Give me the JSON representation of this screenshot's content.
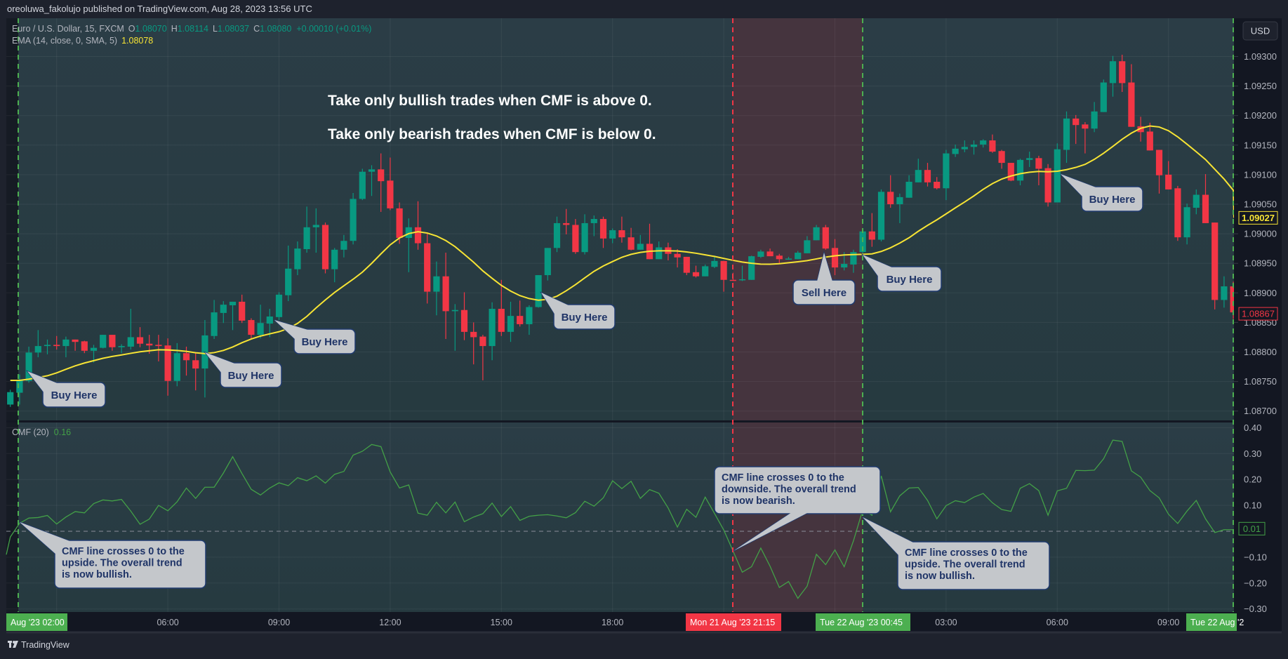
{
  "publisher_line": "oreoluwa_fakolujo published on TradingView.com, Aug 28, 2023 13:56 UTC",
  "footer_brand": "TradingView",
  "colors": {
    "bull": "#089981",
    "bear": "#f23645",
    "ema": "#f7e434",
    "cmf": "#43a047",
    "marker_green": "#4caf50",
    "marker_red": "#f23645",
    "callout_fill": "#c4c7cb",
    "callout_text": "#1f3467",
    "bear_zone": "#45343e"
  },
  "legend": {
    "symbol": "Euro / U.S. Dollar, 15, FXCM",
    "o_label": "O",
    "o_value": "1.08070",
    "h_label": "H",
    "h_value": "1.08114",
    "l_label": "L",
    "l_value": "1.08037",
    "c_label": "C",
    "c_value": "1.08080",
    "change": "+0.00010 (+0.01%)",
    "ema_label": "EMA (14, close, 0, SMA, 5)",
    "ema_value": "1.08078",
    "cmf_label": "CMF (20)",
    "cmf_value": "0.16"
  },
  "currency_button": "USD",
  "headline": {
    "line1": "Take only bullish trades when CMF is above 0.",
    "line2": "Take only bearish trades when CMF is below 0."
  },
  "callouts": {
    "buy1": "Buy Here",
    "buy2": "Buy Here",
    "buy3": "Buy Here",
    "buy4": "Buy Here",
    "sell1": "Sell Here",
    "buy5": "Buy Here",
    "buy6": "Buy Here",
    "cmf_up1": [
      "CMF line crosses 0 to the",
      "upside. The overall trend",
      "is now bullish."
    ],
    "cmf_down": [
      "CMF line crosses 0 to the",
      "downside. The overall trend",
      "is now bearish."
    ],
    "cmf_up2": [
      "CMF line crosses 0 to the",
      "upside. The overall trend",
      "is now bullish."
    ]
  },
  "price_labels": {
    "ema_last": "1.09027",
    "close_last": "1.08867",
    "cmf_last": "0.01"
  },
  "chart_data": [
    {
      "type": "candlestick",
      "interval": "15",
      "y_ticks": [
        "1.09300",
        "1.09250",
        "1.09200",
        "1.09150",
        "1.09100",
        "1.09050",
        "1.09000",
        "1.08950",
        "1.08900",
        "1.08850",
        "1.08800",
        "1.08750",
        "1.08700"
      ],
      "ylim": [
        1.08684,
        1.09365
      ],
      "x_ticks": [
        "06:00",
        "09:00",
        "12:00",
        "15:00",
        "18:00",
        "03:00",
        "06:00",
        "09:00"
      ],
      "x_markers": [
        {
          "label": "Aug '23  02:00",
          "color": "green"
        },
        {
          "label": "Mon 21 Aug '23  21:15",
          "color": "red"
        },
        {
          "label": "Tue 22 Aug '23  00:45",
          "color": "green"
        },
        {
          "label": "Tue 22 Aug '2",
          "color": "green"
        }
      ],
      "grid": true,
      "ohlc": [
        [
          1.08711,
          1.08736,
          1.08707,
          1.08732
        ],
        [
          1.08731,
          1.08762,
          1.08711,
          1.08752
        ],
        [
          1.08751,
          1.08809,
          1.08748,
          1.08799
        ],
        [
          1.08799,
          1.08837,
          1.08791,
          1.0881
        ],
        [
          1.0881,
          1.08821,
          1.08796,
          1.08812
        ],
        [
          1.08812,
          1.08827,
          1.08804,
          1.0881
        ],
        [
          1.0881,
          1.08826,
          1.08791,
          1.08821
        ],
        [
          1.08821,
          1.08821,
          1.08802,
          1.08817
        ],
        [
          1.08818,
          1.08819,
          1.08798,
          1.08802
        ],
        [
          1.08802,
          1.08812,
          1.08782,
          1.08807
        ],
        [
          1.08807,
          1.08829,
          1.08806,
          1.08829
        ],
        [
          1.08829,
          1.08829,
          1.08802,
          1.08808
        ],
        [
          1.08808,
          1.08813,
          1.08798,
          1.0881
        ],
        [
          1.08809,
          1.08873,
          1.08804,
          1.08825
        ],
        [
          1.08825,
          1.08842,
          1.08808,
          1.08814
        ],
        [
          1.08814,
          1.08829,
          1.08797,
          1.08811
        ],
        [
          1.08812,
          1.08829,
          1.08784,
          1.0881
        ],
        [
          1.08811,
          1.08823,
          1.08726,
          1.08751
        ],
        [
          1.08751,
          1.08815,
          1.08742,
          1.08798
        ],
        [
          1.08798,
          1.08809,
          1.0876,
          1.08786
        ],
        [
          1.08786,
          1.08798,
          1.08735,
          1.08772
        ],
        [
          1.08772,
          1.08854,
          1.08723,
          1.08828
        ],
        [
          1.08827,
          1.08888,
          1.08822,
          1.08867
        ],
        [
          1.08866,
          1.08886,
          1.08849,
          1.0888
        ],
        [
          1.08879,
          1.08885,
          1.08837,
          1.08885
        ],
        [
          1.08885,
          1.08897,
          1.08849,
          1.08853
        ],
        [
          1.08854,
          1.08857,
          1.08821,
          1.08829
        ],
        [
          1.08829,
          1.0888,
          1.08823,
          1.08849
        ],
        [
          1.08848,
          1.08873,
          1.08825,
          1.0886
        ],
        [
          1.08859,
          1.08901,
          1.08854,
          1.08897
        ],
        [
          1.08896,
          1.0898,
          1.08886,
          1.08941
        ],
        [
          1.0894,
          1.08987,
          1.0893,
          1.08975
        ],
        [
          1.08974,
          1.09046,
          1.08968,
          1.09011
        ],
        [
          1.09011,
          1.09043,
          1.08968,
          1.09015
        ],
        [
          1.09015,
          1.09019,
          1.08933,
          1.0894
        ],
        [
          1.0894,
          1.08976,
          1.08918,
          1.08973
        ],
        [
          1.08973,
          1.08998,
          1.0896,
          1.08988
        ],
        [
          1.08988,
          1.09069,
          1.08982,
          1.09059
        ],
        [
          1.09059,
          1.0911,
          1.09057,
          1.09105
        ],
        [
          1.09105,
          1.09116,
          1.09064,
          1.09109
        ],
        [
          1.09109,
          1.09136,
          1.09037,
          1.09089
        ],
        [
          1.0909,
          1.09129,
          1.0904,
          1.09043
        ],
        [
          1.09043,
          1.09053,
          1.08983,
          1.08993
        ],
        [
          1.08993,
          1.09026,
          1.08935,
          1.09011
        ],
        [
          1.09011,
          1.09055,
          1.08973,
          1.08984
        ],
        [
          1.08984,
          1.09,
          1.08882,
          1.08902
        ],
        [
          1.08902,
          1.08953,
          1.08862,
          1.08928
        ],
        [
          1.08928,
          1.08968,
          1.08822,
          1.08869
        ],
        [
          1.08869,
          1.08881,
          1.08802,
          1.08871
        ],
        [
          1.08871,
          1.08901,
          1.0882,
          1.08834
        ],
        [
          1.08834,
          1.0885,
          1.08779,
          1.08825
        ],
        [
          1.08826,
          1.08829,
          1.08752,
          1.0881
        ],
        [
          1.0881,
          1.08884,
          1.08786,
          1.08873
        ],
        [
          1.08873,
          1.08922,
          1.08827,
          1.08834
        ],
        [
          1.08834,
          1.08885,
          1.08817,
          1.08861
        ],
        [
          1.08861,
          1.08887,
          1.08843,
          1.08847
        ],
        [
          1.08847,
          1.08879,
          1.08829,
          1.08876
        ],
        [
          1.08876,
          1.0893,
          1.08875,
          1.0893
        ],
        [
          1.0893,
          1.08976,
          1.08921,
          1.08976
        ],
        [
          1.08976,
          1.09029,
          1.08969,
          1.09018
        ],
        [
          1.09018,
          1.09042,
          1.08999,
          1.09015
        ],
        [
          1.09015,
          1.09025,
          1.08966,
          1.08969
        ],
        [
          1.08969,
          1.09033,
          1.08965,
          1.09018
        ],
        [
          1.09018,
          1.09031,
          1.08996,
          1.09025
        ],
        [
          1.09025,
          1.09029,
          1.08976,
          1.08992
        ],
        [
          1.08992,
          1.09009,
          1.08984,
          1.09006
        ],
        [
          1.09006,
          1.09029,
          1.08985,
          1.08994
        ],
        [
          1.08994,
          1.0901,
          1.08972,
          1.08973
        ],
        [
          1.08973,
          1.08998,
          1.08973,
          1.08983
        ],
        [
          1.08983,
          1.09017,
          1.08957,
          1.08957
        ],
        [
          1.08957,
          1.08987,
          1.08957,
          1.08977
        ],
        [
          1.08977,
          1.08985,
          1.08955,
          1.08966
        ],
        [
          1.08966,
          1.08974,
          1.08943,
          1.0896
        ],
        [
          1.08961,
          1.08961,
          1.0893,
          1.08934
        ],
        [
          1.08935,
          1.08946,
          1.08926,
          1.08928
        ],
        [
          1.08928,
          1.08948,
          1.08928,
          1.08945
        ],
        [
          1.08944,
          1.08961,
          1.08942,
          1.08954
        ],
        [
          1.08954,
          1.08954,
          1.08902,
          1.08922
        ],
        [
          1.08922,
          1.08934,
          1.08922,
          1.08921
        ],
        [
          1.08922,
          1.08946,
          1.0892,
          1.08923
        ],
        [
          1.08922,
          1.08963,
          1.08922,
          1.08962
        ],
        [
          1.08961,
          1.08973,
          1.08959,
          1.0897
        ],
        [
          1.0897,
          1.08975,
          1.08962,
          1.08962
        ],
        [
          1.08963,
          1.08966,
          1.08949,
          1.08957
        ],
        [
          1.08957,
          1.08961,
          1.08956,
          1.08958
        ],
        [
          1.08957,
          1.08971,
          1.08957,
          1.08968
        ],
        [
          1.08967,
          1.08996,
          1.08967,
          1.08989
        ],
        [
          1.08989,
          1.09015,
          1.08989,
          1.09011
        ],
        [
          1.09011,
          1.09015,
          1.08973,
          1.08975
        ],
        [
          1.08976,
          1.08991,
          1.0893,
          1.08943
        ],
        [
          1.08943,
          1.08969,
          1.08938,
          1.08949
        ],
        [
          1.08948,
          1.08973,
          1.08934,
          1.08969
        ],
        [
          1.08969,
          1.09006,
          1.08967,
          1.09004
        ],
        [
          1.09004,
          1.09035,
          1.08978,
          1.0899
        ],
        [
          1.0899,
          1.09075,
          1.08987,
          1.09071
        ],
        [
          1.09071,
          1.09099,
          1.09044,
          1.0905
        ],
        [
          1.0905,
          1.09068,
          1.09018,
          1.09062
        ],
        [
          1.09061,
          1.09099,
          1.09061,
          1.09088
        ],
        [
          1.09087,
          1.09127,
          1.09087,
          1.09108
        ],
        [
          1.09108,
          1.0912,
          1.0908,
          1.09087
        ],
        [
          1.09088,
          1.09096,
          1.09075,
          1.09077
        ],
        [
          1.09077,
          1.09142,
          1.09057,
          1.09136
        ],
        [
          1.09135,
          1.09151,
          1.0913,
          1.09144
        ],
        [
          1.09143,
          1.09158,
          1.09138,
          1.09147
        ],
        [
          1.09147,
          1.09158,
          1.09134,
          1.09151
        ],
        [
          1.09151,
          1.0916,
          1.09146,
          1.09158
        ],
        [
          1.09158,
          1.09168,
          1.09137,
          1.09139
        ],
        [
          1.0914,
          1.09142,
          1.0911,
          1.0912
        ],
        [
          1.0912,
          1.0912,
          1.09089,
          1.0909
        ],
        [
          1.0909,
          1.09127,
          1.09082,
          1.09125
        ],
        [
          1.09125,
          1.09139,
          1.09113,
          1.09128
        ],
        [
          1.09128,
          1.09132,
          1.09082,
          1.0911
        ],
        [
          1.09111,
          1.09118,
          1.09046,
          1.09053
        ],
        [
          1.09053,
          1.09153,
          1.09053,
          1.09143
        ],
        [
          1.09142,
          1.09207,
          1.0912,
          1.09195
        ],
        [
          1.09195,
          1.09201,
          1.09152,
          1.09184
        ],
        [
          1.09185,
          1.09189,
          1.09136,
          1.09178
        ],
        [
          1.09178,
          1.09223,
          1.09172,
          1.09207
        ],
        [
          1.09206,
          1.09261,
          1.09206,
          1.09256
        ],
        [
          1.09255,
          1.09301,
          1.09232,
          1.09292
        ],
        [
          1.09292,
          1.09303,
          1.0924,
          1.09255
        ],
        [
          1.09256,
          1.09287,
          1.09181,
          1.09181
        ],
        [
          1.09182,
          1.09198,
          1.09156,
          1.09172
        ],
        [
          1.09173,
          1.09188,
          1.09141,
          1.09141
        ],
        [
          1.09142,
          1.09142,
          1.09068,
          1.09099
        ],
        [
          1.091,
          1.09123,
          1.09075,
          1.09075
        ],
        [
          1.09077,
          1.09081,
          1.08988,
          1.08994
        ],
        [
          1.08994,
          1.09051,
          1.08982,
          1.09045
        ],
        [
          1.09044,
          1.09075,
          1.09033,
          1.09066
        ],
        [
          1.09066,
          1.09101,
          1.09018,
          1.09018
        ],
        [
          1.09019,
          1.09019,
          1.08872,
          1.08888
        ],
        [
          1.08888,
          1.08928,
          1.08875,
          1.08911
        ],
        [
          1.08911,
          1.08919,
          1.08856,
          1.08867
        ]
      ],
      "overlay": {
        "name": "EMA (14, close, 0, SMA, 5)",
        "length": 14,
        "smoothing": "SMA",
        "smoothing_length": 5
      }
    },
    {
      "type": "line",
      "name": "CMF (20)",
      "y_ticks": [
        "0.40",
        "0.30",
        "0.20",
        "0.10",
        "−0.10",
        "−0.20",
        "−0.30"
      ],
      "ylim": [
        -0.31,
        0.41
      ],
      "zero_line": true,
      "values": [
        -0.022,
        0.031,
        0.051,
        0.053,
        0.061,
        0.028,
        0.055,
        0.076,
        0.071,
        0.107,
        0.121,
        0.117,
        0.123,
        0.078,
        0.027,
        0.047,
        0.1,
        0.079,
        0.114,
        0.167,
        0.127,
        0.17,
        0.17,
        0.225,
        0.288,
        0.223,
        0.162,
        0.14,
        0.167,
        0.187,
        0.176,
        0.207,
        0.195,
        0.214,
        0.186,
        0.22,
        0.231,
        0.294,
        0.309,
        0.335,
        0.327,
        0.229,
        0.167,
        0.179,
        0.07,
        0.062,
        0.112,
        0.071,
        0.113,
        0.037,
        0.055,
        0.068,
        0.109,
        0.057,
        0.095,
        0.042,
        0.058,
        0.062,
        0.064,
        0.059,
        0.052,
        0.072,
        0.116,
        0.097,
        0.129,
        0.195,
        0.165,
        0.193,
        0.127,
        0.161,
        0.147,
        0.09,
        0.016,
        0.085,
        0.054,
        0.132,
        0.069,
        0.005,
        -0.076,
        -0.158,
        -0.137,
        -0.065,
        -0.135,
        -0.217,
        -0.194,
        -0.259,
        -0.212,
        -0.089,
        -0.129,
        -0.072,
        -0.137,
        -0.037,
        0.082,
        0.062,
        0.214,
        0.075,
        0.137,
        0.167,
        0.169,
        0.119,
        0.048,
        0.099,
        0.118,
        0.111,
        0.132,
        0.146,
        0.11,
        0.084,
        0.077,
        0.166,
        0.184,
        0.157,
        0.062,
        0.156,
        0.166,
        0.235,
        0.234,
        0.236,
        0.28,
        0.352,
        0.347,
        0.233,
        0.209,
        0.157,
        0.129,
        0.066,
        0.03,
        0.078,
        0.119,
        0.048,
        -0.005,
        0.006,
        0.006
      ]
    }
  ]
}
